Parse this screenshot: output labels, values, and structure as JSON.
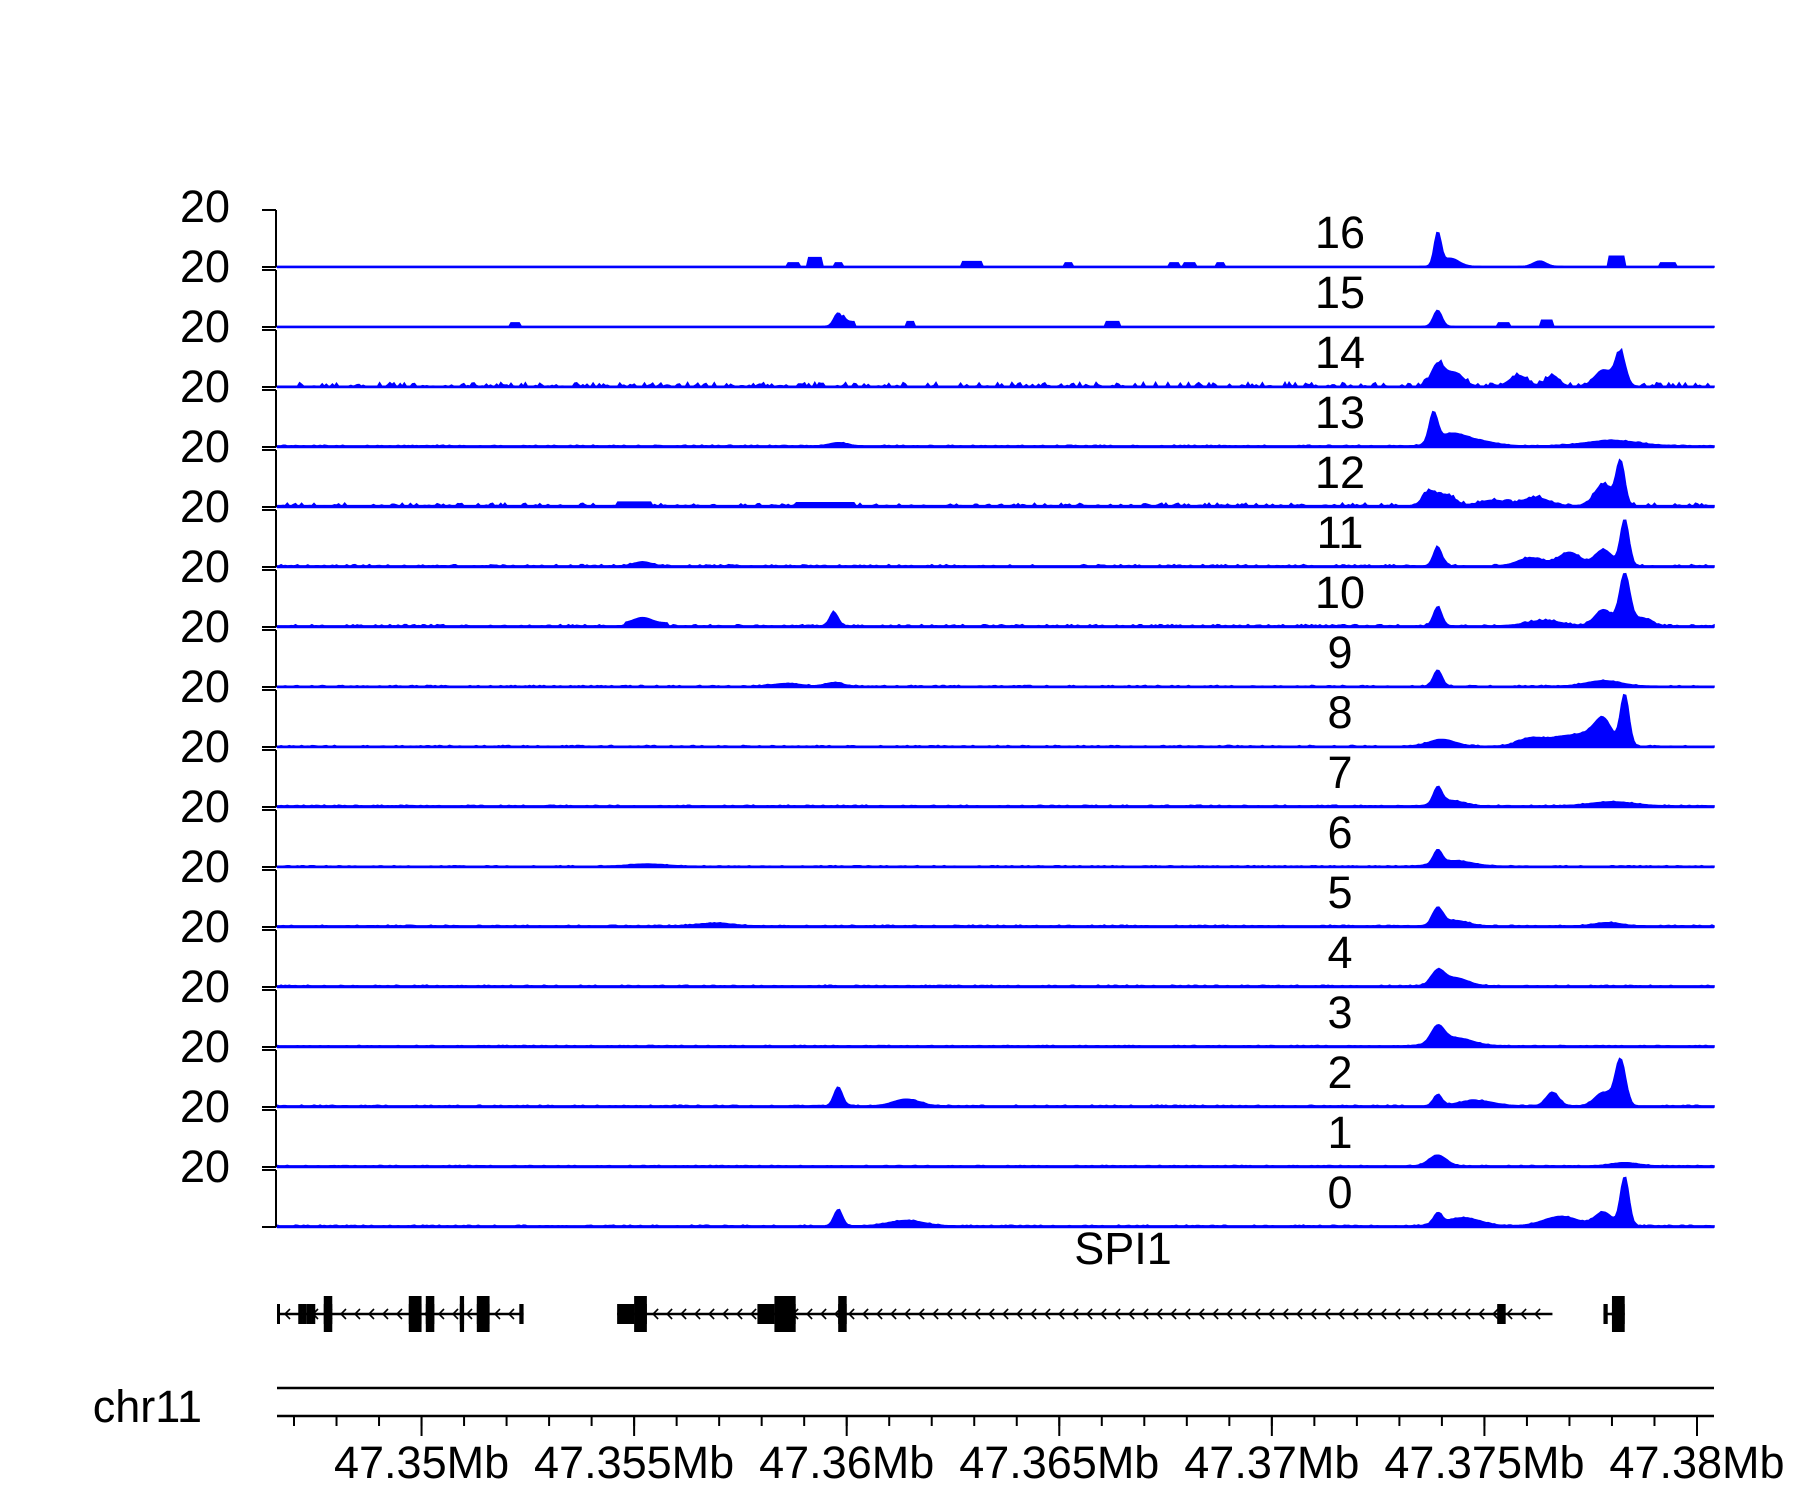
{
  "chart_data": {
    "type": "area",
    "title": "",
    "track_ymax_label": "20",
    "ylim": [
      0,
      20
    ],
    "xlim": [
      47.3466,
      47.3804
    ],
    "x_unit": "Mb",
    "series_color": "#0000ff",
    "gene_label": "SPI1",
    "gene_strand": "-",
    "chrom_label": "chr11",
    "x_ticks": [
      {
        "value": 47.35,
        "label": "47.35Mb"
      },
      {
        "value": 47.355,
        "label": "47.355Mb"
      },
      {
        "value": 47.36,
        "label": "47.36Mb"
      },
      {
        "value": 47.365,
        "label": "47.365Mb"
      },
      {
        "value": 47.37,
        "label": "47.37Mb"
      },
      {
        "value": 47.375,
        "label": "47.375Mb"
      },
      {
        "value": 47.38,
        "label": "47.38Mb"
      }
    ],
    "minor_tick_step": 0.001,
    "transcripts": [
      {
        "start": 47.3466,
        "end": 47.3524,
        "exons": [
          [
            47.3466,
            47.3466
          ],
          [
            47.3471,
            47.3472
          ],
          [
            47.3472,
            47.3473
          ],
          [
            47.3473,
            47.3474
          ],
          [
            47.3474,
            47.3475
          ],
          [
            47.3477,
            47.3479
          ],
          [
            47.3497,
            47.35
          ],
          [
            47.3501,
            47.3503
          ],
          [
            47.3509,
            47.351
          ],
          [
            47.3513,
            47.3516
          ],
          [
            47.3523,
            47.3524
          ]
        ],
        "thick": [
          [
            47.3477,
            47.3479
          ],
          [
            47.3497,
            47.35
          ],
          [
            47.3501,
            47.3503
          ],
          [
            47.3509,
            47.351
          ],
          [
            47.3513,
            47.3516
          ]
        ]
      },
      {
        "start": 47.3546,
        "end": 47.3766,
        "exons": [
          [
            47.3546,
            47.355
          ],
          [
            47.355,
            47.3553
          ],
          [
            47.3579,
            47.3583
          ],
          [
            47.3583,
            47.3588
          ],
          [
            47.3598,
            47.36
          ],
          [
            47.3753,
            47.3755
          ]
        ],
        "thick": [
          [
            47.355,
            47.3553
          ],
          [
            47.3583,
            47.3588
          ],
          [
            47.3598,
            47.36
          ]
        ]
      },
      {
        "start": 47.3778,
        "end": 47.3783,
        "exons": [
          [
            47.3778,
            47.3779
          ],
          [
            47.378,
            47.3783
          ]
        ],
        "thick": [
          [
            47.378,
            47.3783
          ]
        ]
      }
    ],
    "tracks": [
      {
        "name": "16",
        "baseline": 0.2,
        "noise": 0,
        "segments": [
          [
            47.3586,
            47.3589,
            1.5
          ],
          [
            47.3591,
            47.3594,
            3.5
          ],
          [
            47.3597,
            47.3599,
            1.5
          ],
          [
            47.3627,
            47.3632,
            2
          ],
          [
            47.3651,
            47.3653,
            1.5
          ],
          [
            47.3676,
            47.3678,
            1.5
          ],
          [
            47.3679,
            47.3682,
            1.5
          ],
          [
            47.3687,
            47.3689,
            1.5
          ],
          [
            47.3779,
            47.3783,
            4
          ],
          [
            47.3782,
            47.3783,
            4
          ],
          [
            47.3791,
            47.3795,
            1.5
          ]
        ],
        "peaks": [
          [
            47.3739,
            12,
            8e-05
          ],
          [
            47.3742,
            3,
            0.0002
          ],
          [
            47.3763,
            2,
            0.00015
          ]
        ]
      },
      {
        "name": "15",
        "baseline": 0.2,
        "noise": 0,
        "segments": [
          [
            47.3521,
            47.3523,
            1.5
          ],
          [
            47.3599,
            47.3602,
            2
          ],
          [
            47.3614,
            47.3616,
            2
          ],
          [
            47.3661,
            47.3664,
            2
          ],
          [
            47.3753,
            47.3756,
            1.5
          ],
          [
            47.3763,
            47.3766,
            2.5
          ]
        ],
        "peaks": [
          [
            47.3598,
            5,
            0.0001
          ],
          [
            47.3739,
            6,
            0.0001
          ]
        ]
      },
      {
        "name": "14",
        "baseline": 0.3,
        "noise": 1.4,
        "segments": [],
        "peaks": [
          [
            47.3739,
            8,
            0.00015
          ],
          [
            47.3743,
            5,
            0.0002
          ],
          [
            47.3782,
            12,
            0.00012
          ],
          [
            47.3778,
            6,
            0.0002
          ],
          [
            47.3758,
            4,
            0.0002
          ],
          [
            47.3766,
            4,
            0.00015
          ]
        ]
      },
      {
        "name": "13",
        "baseline": 0.4,
        "noise": 0.3,
        "segments": [],
        "peaks": [
          [
            47.3738,
            11,
            0.0001
          ],
          [
            47.3742,
            4,
            0.0003
          ],
          [
            47.3748,
            2,
            0.0004
          ],
          [
            47.378,
            2,
            0.0006
          ],
          [
            47.3598,
            1.2,
            0.0002
          ]
        ]
      },
      {
        "name": "12",
        "baseline": 0.5,
        "noise": 0.9,
        "segments": [
          [
            47.3546,
            47.3554,
            1.8
          ],
          [
            47.3588,
            47.3602,
            1.6
          ]
        ],
        "peaks": [
          [
            47.3737,
            5,
            0.00015
          ],
          [
            47.3741,
            4,
            0.0002
          ],
          [
            47.3782,
            16,
            0.0001
          ],
          [
            47.3778,
            8,
            0.0002
          ],
          [
            47.3762,
            3,
            0.0003
          ],
          [
            47.3752,
            2,
            0.0003
          ]
        ]
      },
      {
        "name": "11",
        "baseline": 0.4,
        "noise": 0.5,
        "segments": [],
        "peaks": [
          [
            47.3739,
            7,
            0.0001
          ],
          [
            47.3783,
            17,
            0.0001
          ],
          [
            47.3778,
            6,
            0.0002
          ],
          [
            47.377,
            5,
            0.00025
          ],
          [
            47.3761,
            3,
            0.0003
          ],
          [
            47.3552,
            1.5,
            0.0002
          ]
        ]
      },
      {
        "name": "10",
        "baseline": 0.4,
        "noise": 0.5,
        "segments": [
          [
            47.3548,
            47.3558,
            1.5
          ]
        ],
        "peaks": [
          [
            47.3783,
            19,
            0.00012
          ],
          [
            47.3778,
            6,
            0.0002
          ],
          [
            47.3787,
            3,
            0.0002
          ],
          [
            47.3739,
            7,
            0.0001
          ],
          [
            47.3597,
            5,
            0.0001
          ],
          [
            47.3764,
            2,
            0.0004
          ],
          [
            47.3552,
            2,
            0.0002
          ]
        ]
      },
      {
        "name": "9",
        "baseline": 0.3,
        "noise": 0.3,
        "segments": [],
        "peaks": [
          [
            47.3739,
            6,
            0.0001
          ],
          [
            47.3778,
            2,
            0.0004
          ],
          [
            47.3597,
            1.3,
            0.0002
          ],
          [
            47.3586,
            1,
            0.0003
          ]
        ]
      },
      {
        "name": "8",
        "baseline": 0.3,
        "noise": 0.3,
        "segments": [],
        "peaks": [
          [
            47.3783,
            19,
            0.0001
          ],
          [
            47.3778,
            9,
            0.0002
          ],
          [
            47.3774,
            4,
            0.0003
          ],
          [
            47.3761,
            3,
            0.0003
          ],
          [
            47.3768,
            3,
            0.0003
          ],
          [
            47.374,
            2.5,
            0.0003
          ]
        ]
      },
      {
        "name": "7",
        "baseline": 0.4,
        "noise": 0.3,
        "segments": [],
        "peaks": [
          [
            47.3739,
            6,
            0.0001
          ],
          [
            47.3742,
            2,
            0.0003
          ],
          [
            47.378,
            1.5,
            0.0005
          ]
        ]
      },
      {
        "name": "6",
        "baseline": 0.3,
        "noise": 0.2,
        "segments": [],
        "peaks": [
          [
            47.3739,
            5,
            0.0001
          ],
          [
            47.3743,
            2,
            0.0004
          ],
          [
            47.3553,
            0.8,
            0.0004
          ]
        ]
      },
      {
        "name": "5",
        "baseline": 0.4,
        "noise": 0.3,
        "segments": [],
        "peaks": [
          [
            47.3739,
            6,
            0.00012
          ],
          [
            47.3743,
            2,
            0.0003
          ],
          [
            47.3779,
            1.2,
            0.0003
          ],
          [
            47.3569,
            1,
            0.0004
          ]
        ]
      },
      {
        "name": "4",
        "baseline": 0.4,
        "noise": 0.3,
        "segments": [],
        "peaks": [
          [
            47.3739,
            5,
            0.00015
          ],
          [
            47.3743,
            3,
            0.0003
          ]
        ]
      },
      {
        "name": "3",
        "baseline": 0.4,
        "noise": 0.2,
        "segments": [],
        "peaks": [
          [
            47.3739,
            6,
            0.00015
          ],
          [
            47.3743,
            3,
            0.0004
          ]
        ]
      },
      {
        "name": "2",
        "baseline": 0.4,
        "noise": 0.3,
        "segments": [],
        "peaks": [
          [
            47.3598,
            7,
            0.0001
          ],
          [
            47.3614,
            2.5,
            0.0003
          ],
          [
            47.3739,
            4,
            0.0001
          ],
          [
            47.3748,
            2,
            0.0004
          ],
          [
            47.3766,
            5,
            0.00015
          ],
          [
            47.3782,
            17,
            0.00012
          ],
          [
            47.3778,
            5,
            0.0002
          ]
        ]
      },
      {
        "name": "1",
        "baseline": 0.4,
        "noise": 0.2,
        "segments": [],
        "peaks": [
          [
            47.3739,
            4,
            0.0002
          ],
          [
            47.3783,
            1.2,
            0.0003
          ]
        ]
      },
      {
        "name": "0",
        "baseline": 0.4,
        "noise": 0.3,
        "segments": [],
        "peaks": [
          [
            47.3598,
            6,
            0.0001
          ],
          [
            47.3614,
            2,
            0.0004
          ],
          [
            47.3739,
            4,
            0.0001
          ],
          [
            47.3745,
            3,
            0.0004
          ],
          [
            47.3768,
            3.5,
            0.0004
          ],
          [
            47.3783,
            18,
            0.0001
          ],
          [
            47.3778,
            5,
            0.0002
          ]
        ]
      }
    ]
  }
}
